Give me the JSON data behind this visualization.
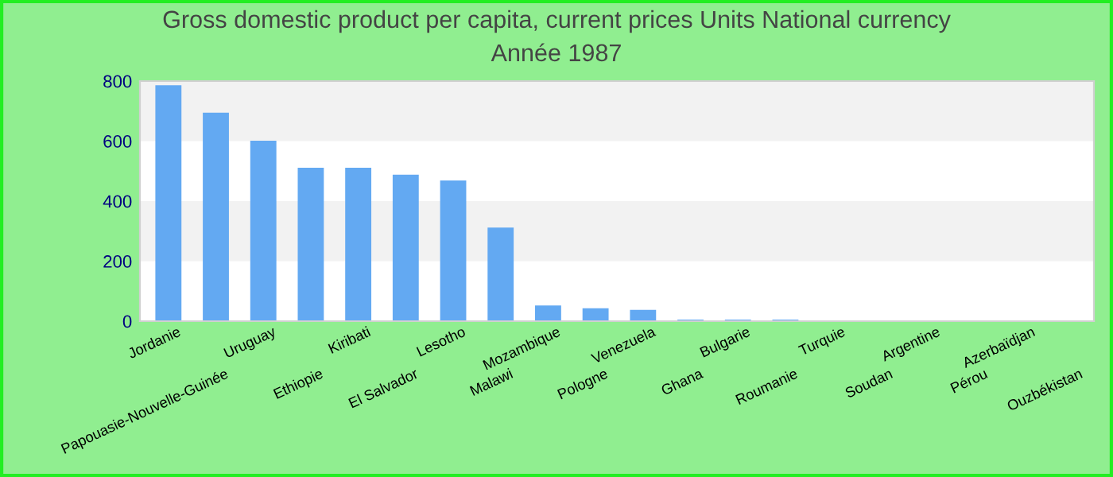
{
  "chart_data": {
    "type": "bar",
    "title": "Gross domestic product per capita, current prices Units National currency",
    "subtitle": "Année 1987",
    "categories": [
      "Jordanie",
      "Papouasie-Nouvelle-Guinée",
      "Uruguay",
      "Ethiopie",
      "Kiribati",
      "El Salvador",
      "Lesotho",
      "Malawi",
      "Mozambique",
      "Pologne",
      "Venezuela",
      "Ghana",
      "Bulgarie",
      "Roumanie",
      "Turquie",
      "Soudan",
      "Argentine",
      "Pérou",
      "Azerbaïdjan",
      "Ouzbékistan"
    ],
    "values": [
      786,
      695,
      601,
      511,
      511,
      488,
      469,
      312,
      52,
      43,
      38,
      5,
      5,
      5,
      0,
      0,
      0,
      0,
      0,
      0
    ],
    "color": "#63a9f2",
    "ylim": [
      0,
      800
    ],
    "yticks": [
      0,
      200,
      400,
      600,
      800
    ],
    "bands": [
      {
        "axis": "y",
        "from": 200,
        "to": 400,
        "color": "#f2f2f2"
      },
      {
        "axis": "y",
        "from": 600,
        "to": 800,
        "color": "#f2f2f2"
      }
    ]
  }
}
